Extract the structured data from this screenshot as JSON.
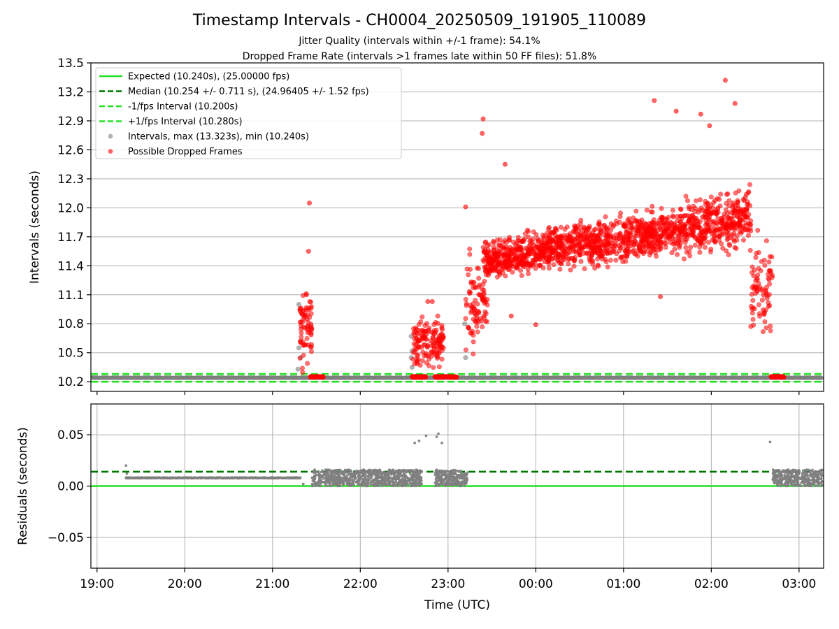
{
  "title": "Timestamp Intervals - CH0004_20250509_191905_110089",
  "subtitle_line1": "Jitter Quality (intervals within +/-1 frame): 54.1%",
  "subtitle_line2": "Dropped Frame Rate (intervals >1 frames late within 50 FF files): 51.8%",
  "colors": {
    "expected": "#22e022",
    "median": "#007700",
    "fps_interval": "#22e022",
    "intervals": "#7f7f7f",
    "dropped": "#ff0000",
    "grid": "#b0b0b0"
  },
  "chart_data": [
    {
      "type": "scatter",
      "ylabel": "Intervals (seconds)",
      "xlim_hours": [
        18.93,
        27.28
      ],
      "ylim": [
        10.1,
        13.5
      ],
      "yticks": [
        "10.2",
        "10.5",
        "10.8",
        "11.1",
        "11.4",
        "11.7",
        "12.0",
        "12.3",
        "12.6",
        "12.9",
        "13.2",
        "13.5"
      ],
      "grid": true,
      "legend_position": "top-left",
      "reference_lines": [
        {
          "name": "Expected (10.240s), (25.00000 fps)",
          "y": 10.24,
          "style": "solid",
          "color_key": "expected"
        },
        {
          "name": "Median (10.254 +/- 0.711 s), (24.96405 +/- 1.52 fps)",
          "y": 10.254,
          "style": "dashed",
          "color_key": "median"
        },
        {
          "name": "-1/fps Interval (10.200s)",
          "y": 10.2,
          "style": "dashed",
          "color_key": "fps_interval"
        },
        {
          "name": "+1/fps Interval (10.280s)",
          "y": 10.28,
          "style": "dashed",
          "color_key": "fps_interval"
        }
      ],
      "scatter_series": [
        {
          "name": "Intervals, max (13.323s), min (10.240s)",
          "color_key": "intervals"
        },
        {
          "name": "Possible Dropped Frames",
          "color_key": "dropped"
        }
      ],
      "normal_intervals": {
        "description_free": true,
        "baseline_y": 10.24,
        "x_start": 18.95,
        "x_end": 27.26,
        "spacing_hours": 0.0028,
        "outliers": [
          {
            "x": 21.3,
            "y": 11.0
          },
          {
            "x": 21.3,
            "y": 10.55
          },
          {
            "x": 21.32,
            "y": 10.45
          },
          {
            "x": 21.29,
            "y": 10.33
          },
          {
            "x": 22.58,
            "y": 10.67
          },
          {
            "x": 22.59,
            "y": 10.52
          },
          {
            "x": 22.58,
            "y": 10.45
          },
          {
            "x": 22.59,
            "y": 10.35
          },
          {
            "x": 23.19,
            "y": 10.8
          },
          {
            "x": 23.2,
            "y": 10.45
          }
        ]
      },
      "dropped_frames": {
        "clusters": [
          {
            "x_range": [
              21.31,
              21.45
            ],
            "y_range": [
              10.28,
              11.25
            ],
            "count": 70
          },
          {
            "x_range": [
              22.6,
              22.95
            ],
            "y_range": [
              10.28,
              10.95
            ],
            "count": 140
          },
          {
            "x_range": [
              23.2,
              23.45
            ],
            "y_range": [
              10.3,
              11.8
            ],
            "count": 90
          },
          {
            "x_range": [
              23.4,
              26.45
            ],
            "y_range": [
              11.0,
              12.6
            ],
            "count": 1500
          },
          {
            "x_range": [
              26.45,
              26.7
            ],
            "y_range": [
              10.5,
              11.8
            ],
            "count": 80
          }
        ],
        "baseline_runs": [
          {
            "x_range": [
              21.43,
              21.58
            ],
            "y": 10.25
          },
          {
            "x_range": [
              22.59,
              22.75
            ],
            "y": 10.25
          },
          {
            "x_range": [
              22.85,
              23.1
            ],
            "y": 10.25
          },
          {
            "x_range": [
              26.68,
              26.83
            ],
            "y": 10.25
          }
        ],
        "highlights": [
          {
            "x": 21.42,
            "y": 12.05
          },
          {
            "x": 21.41,
            "y": 11.55
          },
          {
            "x": 23.4,
            "y": 12.92
          },
          {
            "x": 23.39,
            "y": 12.77
          },
          {
            "x": 23.2,
            "y": 12.01
          },
          {
            "x": 23.65,
            "y": 12.45
          },
          {
            "x": 25.35,
            "y": 13.11
          },
          {
            "x": 25.6,
            "y": 13.0
          },
          {
            "x": 26.16,
            "y": 13.32
          },
          {
            "x": 26.27,
            "y": 13.08
          },
          {
            "x": 25.88,
            "y": 12.97
          },
          {
            "x": 25.98,
            "y": 12.85
          },
          {
            "x": 25.42,
            "y": 11.08
          },
          {
            "x": 24.0,
            "y": 10.79
          },
          {
            "x": 23.72,
            "y": 10.88
          },
          {
            "x": 22.82,
            "y": 11.03
          },
          {
            "x": 22.77,
            "y": 11.03
          }
        ]
      }
    },
    {
      "type": "scatter",
      "ylabel": "Residuals (seconds)",
      "xlabel": "Time (UTC)",
      "xlim_hours": [
        18.93,
        27.28
      ],
      "ylim": [
        -0.08,
        0.08
      ],
      "yticks": [
        "−0.05",
        "0.00",
        "0.05"
      ],
      "ytick_values": [
        -0.05,
        0.0,
        0.05
      ],
      "xticks": [
        "19:00",
        "20:00",
        "21:00",
        "22:00",
        "23:00",
        "00:00",
        "01:00",
        "02:00",
        "03:00"
      ],
      "xtick_values": [
        19,
        20,
        21,
        22,
        23,
        24,
        25,
        26,
        27
      ],
      "grid": true,
      "reference_lines": [
        {
          "y": 0.0,
          "style": "solid",
          "color_key": "expected"
        },
        {
          "y": 0.014,
          "style": "dashed",
          "color_key": "median"
        }
      ],
      "residual_segments": [
        {
          "x_range": [
            19.33,
            21.32
          ],
          "y": 0.008,
          "kind": "line"
        },
        {
          "x_range": [
            21.45,
            22.65
          ],
          "y_range": [
            0.0,
            0.016
          ],
          "kind": "band"
        },
        {
          "x_range": [
            22.62,
            22.7
          ],
          "y_range": [
            0.0,
            0.016
          ],
          "kind": "band"
        },
        {
          "x_range": [
            22.85,
            23.22
          ],
          "y_range": [
            0.0,
            0.016
          ],
          "kind": "band"
        },
        {
          "x_range": [
            26.7,
            27.27
          ],
          "y_range": [
            0.0,
            0.016
          ],
          "kind": "band"
        }
      ],
      "residual_points": [
        {
          "x": 19.33,
          "y": 0.02
        },
        {
          "x": 19.34,
          "y": 0.012
        },
        {
          "x": 21.35,
          "y": 0.002
        },
        {
          "x": 22.62,
          "y": 0.042
        },
        {
          "x": 22.67,
          "y": 0.044
        },
        {
          "x": 22.75,
          "y": 0.049
        },
        {
          "x": 22.87,
          "y": 0.048
        },
        {
          "x": 22.89,
          "y": 0.051
        },
        {
          "x": 22.93,
          "y": 0.042
        },
        {
          "x": 26.67,
          "y": 0.043
        }
      ]
    }
  ]
}
